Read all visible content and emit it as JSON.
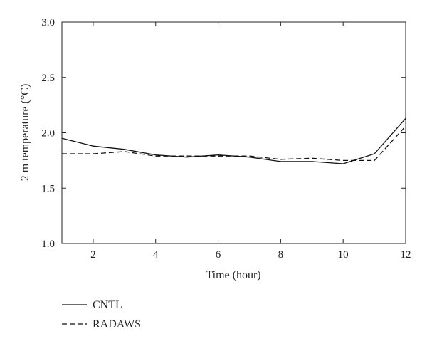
{
  "chart_data": {
    "type": "line",
    "title": "",
    "xlabel": "Time (hour)",
    "ylabel": "2 m temperature (°C)",
    "xlim": [
      1,
      12
    ],
    "ylim": [
      1.0,
      3.0
    ],
    "x_ticks": [
      2,
      4,
      6,
      8,
      10,
      12
    ],
    "y_ticks": [
      "1.0",
      "1.5",
      "2.0",
      "2.5",
      "3.0"
    ],
    "grid": false,
    "legend_position": "bottom-left, below plot",
    "x": [
      1,
      2,
      3,
      4,
      5,
      6,
      7,
      8,
      9,
      10,
      11,
      12
    ],
    "series": [
      {
        "name": "CNTL",
        "style": "solid",
        "color": "#111111",
        "values": [
          1.95,
          1.88,
          1.85,
          1.8,
          1.78,
          1.8,
          1.78,
          1.74,
          1.74,
          1.72,
          1.81,
          2.13
        ]
      },
      {
        "name": "RADAWS",
        "style": "dashed",
        "color": "#111111",
        "values": [
          1.81,
          1.81,
          1.83,
          1.79,
          1.79,
          1.79,
          1.79,
          1.76,
          1.77,
          1.75,
          1.75,
          2.06
        ]
      }
    ]
  }
}
